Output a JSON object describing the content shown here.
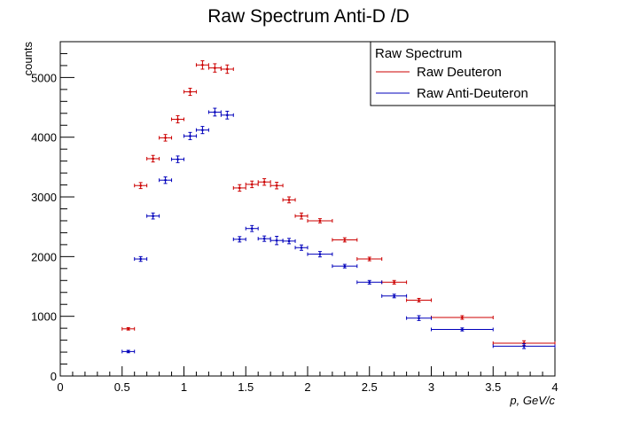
{
  "chart_data": {
    "type": "scatter",
    "title": "Raw Spectrum Anti-D /D",
    "xlabel": "p, GeV/c",
    "ylabel": "counts",
    "xlim": [
      0,
      4
    ],
    "ylim": [
      0,
      5600
    ],
    "x_ticks": [
      0,
      0.5,
      1,
      1.5,
      2,
      2.5,
      3,
      3.5,
      4
    ],
    "x_tick_labels": [
      "0",
      "0.5",
      "1",
      "1.5",
      "2",
      "2.5",
      "3",
      "3.5",
      "4"
    ],
    "y_ticks": [
      0,
      1000,
      2000,
      3000,
      4000,
      5000
    ],
    "y_tick_labels": [
      "0",
      "1000",
      "2000",
      "3000",
      "4000",
      "5000"
    ],
    "grid": false,
    "legend": {
      "title": "Raw Spectrum",
      "placement": "top-right"
    },
    "series": [
      {
        "name": "Raw Deuteron",
        "color": "#cc0000",
        "points": [
          {
            "x": 0.55,
            "xerr": 0.05,
            "y": 790,
            "yerr": 20
          },
          {
            "x": 0.65,
            "xerr": 0.05,
            "y": 3190,
            "yerr": 50
          },
          {
            "x": 0.75,
            "xerr": 0.05,
            "y": 3640,
            "yerr": 55
          },
          {
            "x": 0.85,
            "xerr": 0.05,
            "y": 3990,
            "yerr": 55
          },
          {
            "x": 0.95,
            "xerr": 0.05,
            "y": 4300,
            "yerr": 60
          },
          {
            "x": 1.05,
            "xerr": 0.05,
            "y": 4760,
            "yerr": 60
          },
          {
            "x": 1.15,
            "xerr": 0.05,
            "y": 5210,
            "yerr": 70
          },
          {
            "x": 1.25,
            "xerr": 0.05,
            "y": 5160,
            "yerr": 70
          },
          {
            "x": 1.35,
            "xerr": 0.05,
            "y": 5140,
            "yerr": 70
          },
          {
            "x": 1.45,
            "xerr": 0.05,
            "y": 3150,
            "yerr": 55
          },
          {
            "x": 1.55,
            "xerr": 0.05,
            "y": 3210,
            "yerr": 55
          },
          {
            "x": 1.65,
            "xerr": 0.05,
            "y": 3250,
            "yerr": 55
          },
          {
            "x": 1.75,
            "xerr": 0.05,
            "y": 3190,
            "yerr": 55
          },
          {
            "x": 1.85,
            "xerr": 0.05,
            "y": 2950,
            "yerr": 50
          },
          {
            "x": 1.95,
            "xerr": 0.05,
            "y": 2680,
            "yerr": 50
          },
          {
            "x": 2.1,
            "xerr": 0.1,
            "y": 2600,
            "yerr": 35
          },
          {
            "x": 2.3,
            "xerr": 0.1,
            "y": 2280,
            "yerr": 35
          },
          {
            "x": 2.5,
            "xerr": 0.1,
            "y": 1960,
            "yerr": 30
          },
          {
            "x": 2.7,
            "xerr": 0.1,
            "y": 1570,
            "yerr": 30
          },
          {
            "x": 2.9,
            "xerr": 0.1,
            "y": 1270,
            "yerr": 30
          },
          {
            "x": 3.25,
            "xerr": 0.25,
            "y": 980,
            "yerr": 30
          },
          {
            "x": 3.75,
            "xerr": 0.25,
            "y": 550,
            "yerr": 40
          }
        ]
      },
      {
        "name": "Raw Anti-Deuteron",
        "color": "#0000bb",
        "points": [
          {
            "x": 0.55,
            "xerr": 0.05,
            "y": 410,
            "yerr": 20
          },
          {
            "x": 0.65,
            "xerr": 0.05,
            "y": 1960,
            "yerr": 40
          },
          {
            "x": 0.75,
            "xerr": 0.05,
            "y": 2680,
            "yerr": 50
          },
          {
            "x": 0.85,
            "xerr": 0.05,
            "y": 3280,
            "yerr": 55
          },
          {
            "x": 0.95,
            "xerr": 0.05,
            "y": 3630,
            "yerr": 55
          },
          {
            "x": 1.05,
            "xerr": 0.05,
            "y": 4020,
            "yerr": 60
          },
          {
            "x": 1.15,
            "xerr": 0.05,
            "y": 4120,
            "yerr": 60
          },
          {
            "x": 1.25,
            "xerr": 0.05,
            "y": 4420,
            "yerr": 65
          },
          {
            "x": 1.35,
            "xerr": 0.05,
            "y": 4370,
            "yerr": 65
          },
          {
            "x": 1.45,
            "xerr": 0.05,
            "y": 2290,
            "yerr": 45
          },
          {
            "x": 1.55,
            "xerr": 0.05,
            "y": 2470,
            "yerr": 50
          },
          {
            "x": 1.65,
            "xerr": 0.05,
            "y": 2300,
            "yerr": 45
          },
          {
            "x": 1.75,
            "xerr": 0.05,
            "y": 2270,
            "yerr": 70
          },
          {
            "x": 1.85,
            "xerr": 0.05,
            "y": 2260,
            "yerr": 45
          },
          {
            "x": 1.95,
            "xerr": 0.05,
            "y": 2150,
            "yerr": 45
          },
          {
            "x": 2.1,
            "xerr": 0.1,
            "y": 2040,
            "yerr": 45
          },
          {
            "x": 2.3,
            "xerr": 0.1,
            "y": 1840,
            "yerr": 30
          },
          {
            "x": 2.5,
            "xerr": 0.1,
            "y": 1570,
            "yerr": 30
          },
          {
            "x": 2.7,
            "xerr": 0.1,
            "y": 1340,
            "yerr": 30
          },
          {
            "x": 2.9,
            "xerr": 0.1,
            "y": 970,
            "yerr": 40
          },
          {
            "x": 3.25,
            "xerr": 0.25,
            "y": 780,
            "yerr": 25
          },
          {
            "x": 3.75,
            "xerr": 0.25,
            "y": 500,
            "yerr": 40
          }
        ]
      }
    ]
  }
}
